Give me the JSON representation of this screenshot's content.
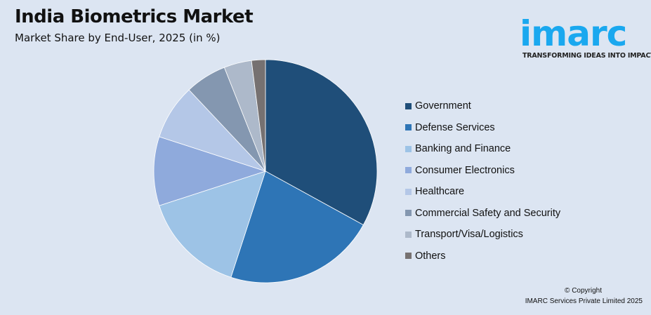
{
  "logo": {
    "word": "imarc",
    "tagline": "TRANSFORMING IDEAS INTO IMPACT",
    "color": "#1aa8ef"
  },
  "footer": {
    "copyright": "© Copyright",
    "company": "IMARC Services Private Limited 2025"
  },
  "chart_data": {
    "type": "pie",
    "title": "India Biometrics Market",
    "subtitle": "Market Share by End-User, 2025 (in %)",
    "legend_placement": "right",
    "categories": [
      "Government",
      "Defense Services",
      "Banking and Finance",
      "Consumer Electronics",
      "Healthcare",
      "Commercial Safety and Security",
      "Transport/Visa/Logistics",
      "Others"
    ],
    "values": [
      33,
      22,
      15,
      10,
      8,
      6,
      4,
      2
    ],
    "colors": [
      "#1f4e79",
      "#2e75b6",
      "#9dc3e6",
      "#8faadc",
      "#b4c7e7",
      "#8497b0",
      "#adb9ca",
      "#767171"
    ]
  }
}
